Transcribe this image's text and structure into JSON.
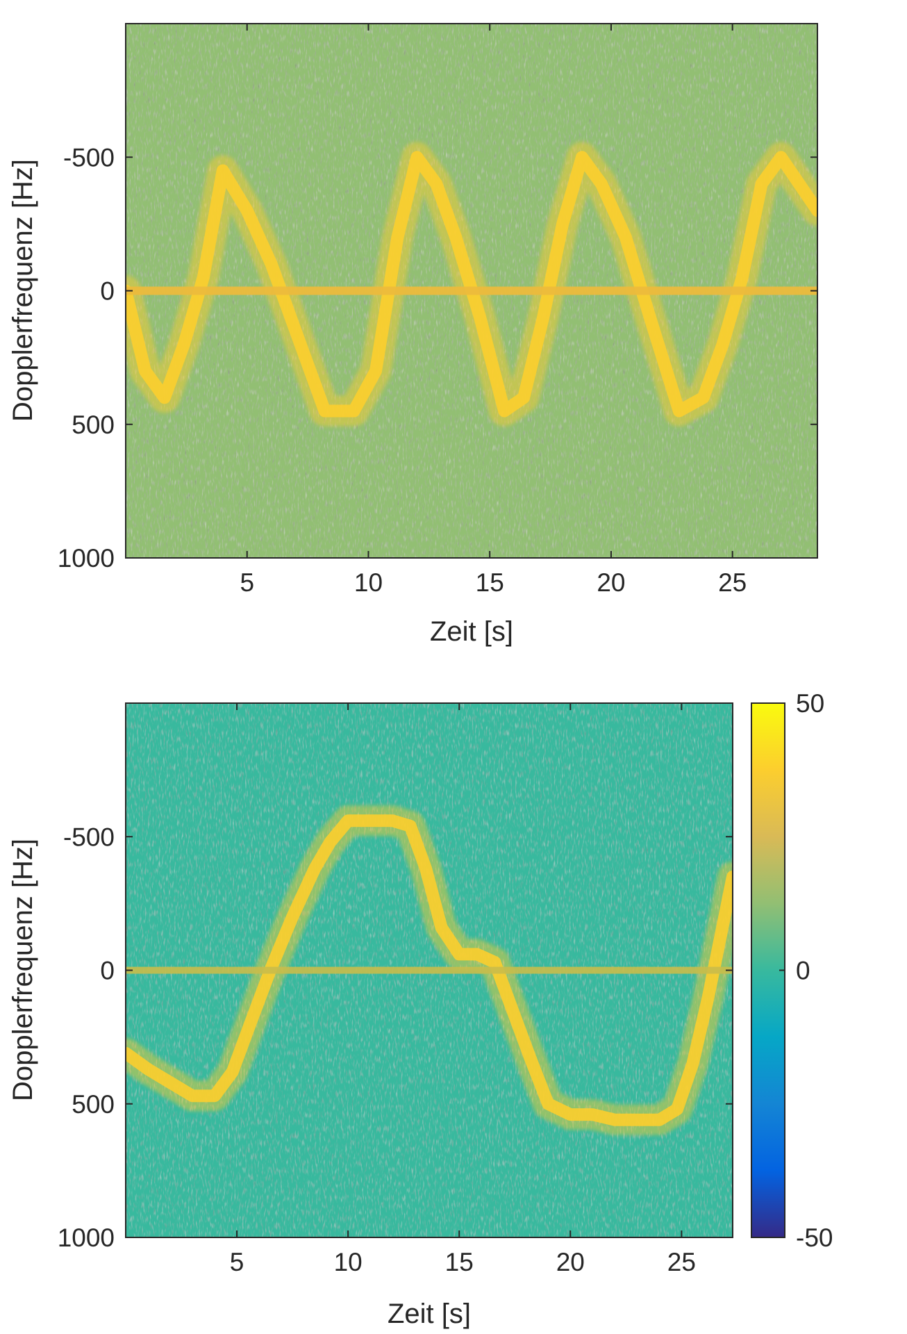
{
  "chart_data": [
    {
      "type": "heatmap",
      "title": "",
      "xlabel": "Zeit [s]",
      "ylabel": "Dopplerfrequenz [Hz]",
      "xlim": [
        0,
        28.5
      ],
      "ylim": [
        -1000,
        1000
      ],
      "y_reversed": true,
      "x_ticks": [
        5,
        10,
        15,
        20,
        25
      ],
      "x_tick_labels": [
        "5",
        "10",
        "15",
        "20",
        "25"
      ],
      "y_ticks": [
        -500,
        0,
        500,
        1000
      ],
      "y_tick_labels": [
        "-500",
        "0",
        "500",
        "1000"
      ],
      "background_level_db": 10,
      "signature_level_db": 35,
      "clutter_line_hz": 0,
      "signature_doppler_trace": {
        "x": [
          0,
          0.8,
          1.6,
          2.4,
          3.2,
          4.0,
          5.0,
          6.0,
          7.0,
          8.2,
          9.4,
          10.3,
          11.2,
          12.0,
          12.8,
          13.6,
          14.6,
          15.6,
          16.4,
          17.2,
          18.0,
          18.8,
          19.6,
          20.6,
          21.6,
          22.8,
          23.8,
          24.6,
          25.4,
          26.2,
          27.0,
          28.5
        ],
        "y": [
          0,
          300,
          400,
          200,
          -50,
          -450,
          -300,
          -100,
          150,
          450,
          450,
          300,
          -200,
          -500,
          -400,
          -200,
          100,
          450,
          400,
          100,
          -250,
          -500,
          -400,
          -200,
          100,
          450,
          400,
          200,
          -50,
          -400,
          -500,
          -300
        ]
      }
    },
    {
      "type": "heatmap",
      "title": "",
      "xlabel": "Zeit [s]",
      "ylabel": "Dopplerfrequenz [Hz]",
      "xlim": [
        0,
        27.3
      ],
      "ylim": [
        -1000,
        1000
      ],
      "y_reversed": true,
      "x_ticks": [
        5,
        10,
        15,
        20,
        25
      ],
      "x_tick_labels": [
        "5",
        "10",
        "15",
        "20",
        "25"
      ],
      "y_ticks": [
        -500,
        0,
        500,
        1000
      ],
      "y_tick_labels": [
        "-500",
        "0",
        "500",
        "1000"
      ],
      "background_level_db": 5,
      "signature_level_db": 35,
      "clutter_line_hz": 0,
      "signature_doppler_trace": {
        "x": [
          0,
          1.0,
          2.0,
          3.0,
          4.0,
          4.8,
          5.6,
          6.5,
          7.5,
          8.5,
          9.2,
          10.0,
          11.0,
          12.0,
          12.8,
          13.5,
          14.2,
          15.0,
          15.8,
          16.6,
          17.4,
          18.2,
          19.0,
          20.0,
          21.0,
          22.0,
          23.0,
          24.0,
          24.8,
          25.5,
          26.2,
          27.3
        ],
        "y": [
          310,
          370,
          420,
          470,
          470,
          380,
          200,
          0,
          -200,
          -380,
          -480,
          -560,
          -560,
          -560,
          -540,
          -380,
          -160,
          -60,
          -60,
          -30,
          150,
          330,
          500,
          540,
          540,
          560,
          560,
          560,
          520,
          350,
          100,
          -350
        ]
      },
      "colorbar": {
        "ticks": [
          -50,
          0,
          50
        ],
        "tick_labels": [
          "-50",
          "0",
          "50"
        ],
        "range": [
          -50,
          50
        ],
        "colormap": "parula"
      }
    }
  ]
}
